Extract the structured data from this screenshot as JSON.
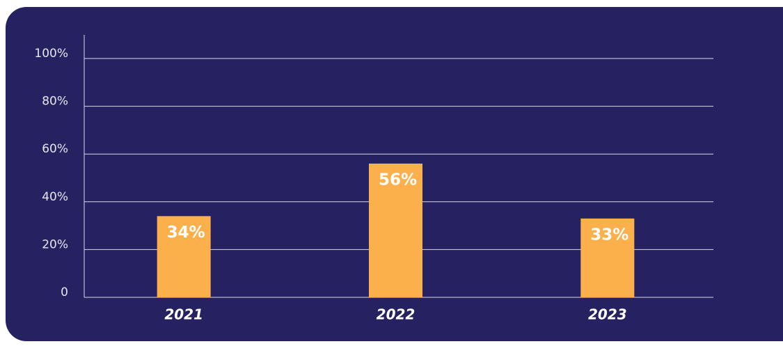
{
  "chart_data": {
    "type": "bar",
    "categories": [
      "2021",
      "2022",
      "2023"
    ],
    "values": [
      34,
      56,
      33
    ],
    "value_labels": [
      "34%",
      "56%",
      "33%"
    ],
    "color": "#fbb04c",
    "ylim": [
      0,
      100
    ],
    "yticks": [
      0,
      {
        "value": 20,
        "label": "20%"
      },
      {
        "value": 40,
        "label": "40%"
      },
      {
        "value": 60,
        "label": "60%"
      },
      {
        "value": 80,
        "label": "80%"
      },
      {
        "value": 100,
        "label": "100%"
      }
    ],
    "grid": true
  }
}
